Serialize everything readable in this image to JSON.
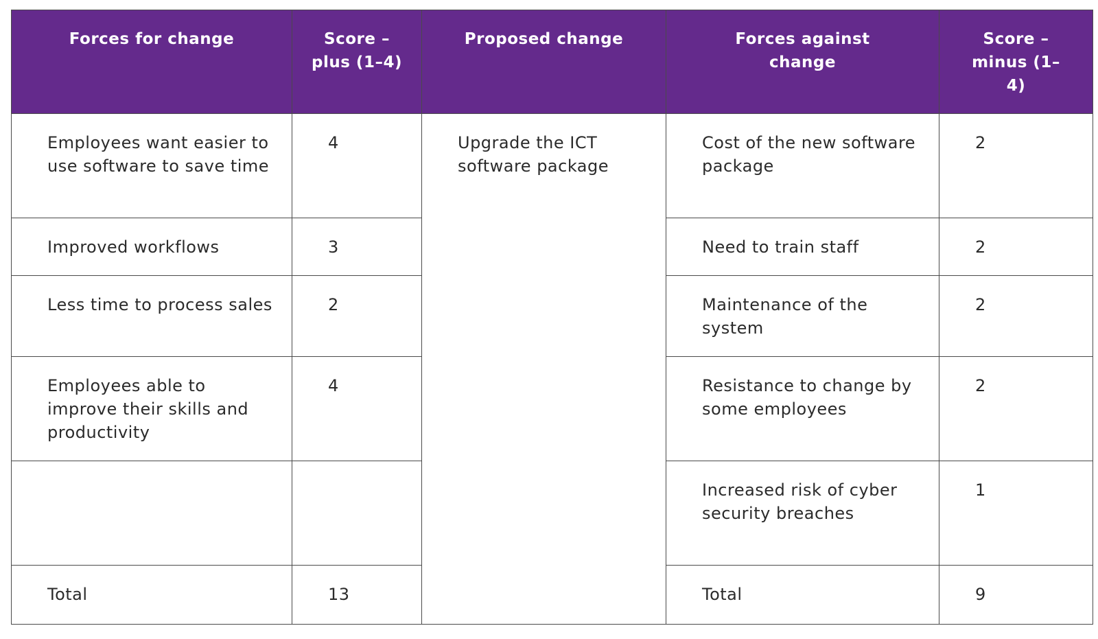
{
  "headers": {
    "forces_for": "Forces for change",
    "score_plus": "Score – plus (1–4)",
    "proposed": "Proposed change",
    "forces_against": "Forces against change",
    "score_minus": "Score – minus (1–4)"
  },
  "proposed_change": "Upgrade the ICT software package",
  "rows": [
    {
      "for": "Employees want easier to use software to save time",
      "plus": "4",
      "against": "Cost of the new software package",
      "minus": "2"
    },
    {
      "for": "Improved workflows",
      "plus": "3",
      "against": "Need to train staff",
      "minus": "2"
    },
    {
      "for": "Less time to process sales",
      "plus": "2",
      "against": "Maintenance of the system",
      "minus": "2"
    },
    {
      "for": "Employees able to improve their skills and productivity",
      "plus": "4",
      "against": "Resistance to change by some employees",
      "minus": "2"
    },
    {
      "for": "",
      "plus": "",
      "against": "Increased risk of cyber security breaches",
      "minus": "1"
    }
  ],
  "totals": {
    "for_label": "Total",
    "plus": "13",
    "against_label": "Total",
    "minus": "9"
  },
  "colors": {
    "header_bg": "#642a8c",
    "header_text": "#ffffff",
    "border": "#4a4a4a"
  }
}
